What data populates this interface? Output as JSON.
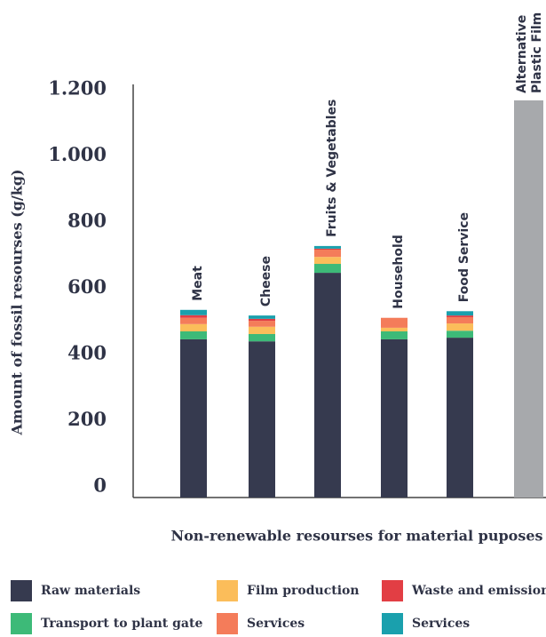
{
  "chart_data": {
    "type": "stacked_bar",
    "ylabel": "Amount of fossil resourses (g/kg)",
    "xlabel": "Non-renewable resourses for material puposes",
    "categories": [
      "Meat",
      "Cheese",
      "Fruits & Vegetables",
      "Household",
      "Food Service"
    ],
    "series": [
      {
        "name": "Raw materials",
        "color": "#363a4f",
        "values": [
          478,
          472,
          679,
          478,
          483
        ]
      },
      {
        "name": "Transport to plant gate",
        "color": "#3dba78",
        "values": [
          24,
          22,
          27,
          24,
          21
        ]
      },
      {
        "name": "Film production",
        "color": "#fbbd5a",
        "values": [
          22,
          22,
          21,
          11,
          22
        ]
      },
      {
        "name": "Services",
        "color": "#f47c5a",
        "values": [
          19,
          18,
          22,
          30,
          19
        ]
      },
      {
        "name": "Waste and emissions",
        "color": "#e23e44",
        "values": [
          8,
          6,
          3,
          0,
          5
        ]
      },
      {
        "name": "Services",
        "color": "#1aa0ad",
        "values": [
          16,
          10,
          8,
          0,
          13
        ]
      }
    ],
    "comparison": {
      "label": [
        "Alternative",
        "Plastic Film"
      ],
      "value": 1200,
      "color": "#a7a9ac"
    },
    "ylim": [
      0,
      1200
    ],
    "yticks": [
      0,
      200,
      400,
      600,
      800,
      {
        "value": 1000,
        "label": "1.000"
      },
      {
        "value": 1200,
        "label": "1.200"
      }
    ]
  }
}
